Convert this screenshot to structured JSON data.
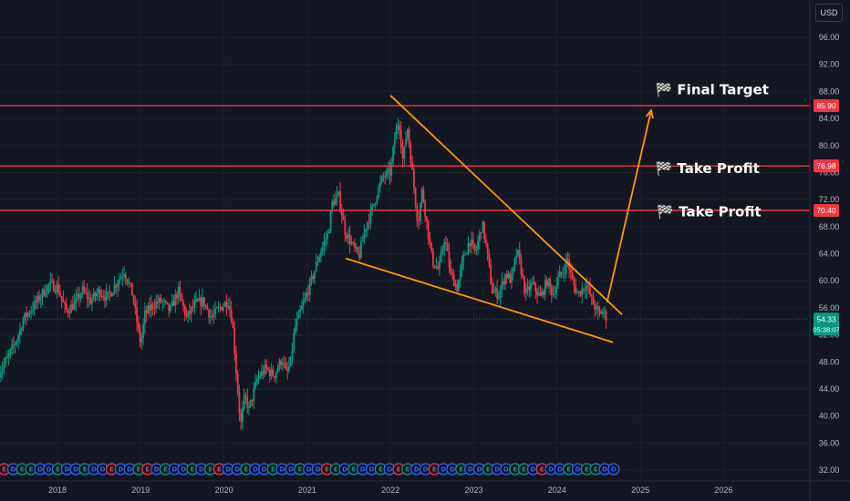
{
  "toolbar": {
    "currency": "USD"
  },
  "chart_data": {
    "type": "candlestick",
    "xlabels": [
      "2018",
      "2019",
      "2020",
      "2021",
      "2022",
      "2023",
      "2024",
      "2025",
      "2026"
    ],
    "yticks": [
      32,
      36,
      40,
      44,
      48,
      52,
      56,
      60,
      64,
      68,
      72,
      76,
      80,
      84,
      88,
      92,
      96
    ],
    "ylim": [
      31,
      98.5
    ],
    "xlim": [
      2017.3,
      2027.3
    ],
    "horizontal_levels": [
      {
        "value": 85.9,
        "label": "85.90",
        "color": "#f23645"
      },
      {
        "value": 76.98,
        "label": "76.98",
        "color": "#f23645"
      },
      {
        "value": 70.4,
        "label": "70.40",
        "color": "#f23645"
      }
    ],
    "current_price": {
      "value": 54.33,
      "label": "54.33",
      "countdown": "05:38:07",
      "color": "#089981"
    },
    "annotations": [
      {
        "text": "🏁 Final Target",
        "x": 2025.18,
        "y": 87.6
      },
      {
        "text": "🏁 Take Profit",
        "x": 2025.18,
        "y": 75.9
      },
      {
        "text": "🏁 Take Profit",
        "x": 2025.2,
        "y": 69.5
      }
    ],
    "trendlines": [
      {
        "from": [
          2022.0,
          87.4
        ],
        "to": [
          2024.78,
          55.0
        ],
        "color": "#ff9800"
      },
      {
        "from": [
          2021.46,
          63.3
        ],
        "to": [
          2024.67,
          50.9
        ],
        "color": "#ff9800"
      }
    ],
    "projection_arrow": {
      "from": [
        2024.6,
        56.8
      ],
      "to": [
        2025.13,
        85.2
      ],
      "color": "#ff9800"
    },
    "price_path": [
      [
        2017.3,
        46.5
      ],
      [
        2017.4,
        48.5
      ],
      [
        2017.5,
        51.0
      ],
      [
        2017.6,
        54.5
      ],
      [
        2017.7,
        56.0
      ],
      [
        2017.8,
        57.8
      ],
      [
        2017.9,
        59.5
      ],
      [
        2018.0,
        59.0
      ],
      [
        2018.1,
        55.5
      ],
      [
        2018.2,
        56.5
      ],
      [
        2018.3,
        58.5
      ],
      [
        2018.4,
        57.0
      ],
      [
        2018.5,
        58.5
      ],
      [
        2018.6,
        57.5
      ],
      [
        2018.7,
        59.5
      ],
      [
        2018.8,
        61.5
      ],
      [
        2018.9,
        58.0
      ],
      [
        2019.0,
        50.5
      ],
      [
        2019.05,
        55.0
      ],
      [
        2019.15,
        56.5
      ],
      [
        2019.25,
        57.0
      ],
      [
        2019.35,
        55.5
      ],
      [
        2019.45,
        58.5
      ],
      [
        2019.55,
        54.5
      ],
      [
        2019.65,
        56.5
      ],
      [
        2019.75,
        57.0
      ],
      [
        2019.85,
        54.5
      ],
      [
        2019.95,
        56.0
      ],
      [
        2020.05,
        57.0
      ],
      [
        2020.1,
        54.0
      ],
      [
        2020.15,
        46.0
      ],
      [
        2020.2,
        38.5
      ],
      [
        2020.25,
        43.0
      ],
      [
        2020.3,
        41.0
      ],
      [
        2020.4,
        45.5
      ],
      [
        2020.5,
        47.0
      ],
      [
        2020.6,
        46.0
      ],
      [
        2020.7,
        48.5
      ],
      [
        2020.75,
        46.0
      ],
      [
        2020.8,
        48.0
      ],
      [
        2020.85,
        53.0
      ],
      [
        2020.95,
        56.5
      ],
      [
        2021.05,
        60.0
      ],
      [
        2021.15,
        64.0
      ],
      [
        2021.25,
        67.0
      ],
      [
        2021.3,
        71.5
      ],
      [
        2021.38,
        72.5
      ],
      [
        2021.45,
        67.5
      ],
      [
        2021.55,
        65.0
      ],
      [
        2021.62,
        63.5
      ],
      [
        2021.7,
        68.0
      ],
      [
        2021.78,
        70.5
      ],
      [
        2021.85,
        73.5
      ],
      [
        2021.92,
        75.5
      ],
      [
        2022.0,
        76.0
      ],
      [
        2022.05,
        81.0
      ],
      [
        2022.1,
        84.0
      ],
      [
        2022.15,
        77.5
      ],
      [
        2022.2,
        83.0
      ],
      [
        2022.27,
        75.0
      ],
      [
        2022.33,
        68.5
      ],
      [
        2022.38,
        73.5
      ],
      [
        2022.43,
        69.0
      ],
      [
        2022.5,
        63.0
      ],
      [
        2022.58,
        61.5
      ],
      [
        2022.65,
        66.5
      ],
      [
        2022.72,
        61.0
      ],
      [
        2022.8,
        59.0
      ],
      [
        2022.88,
        63.5
      ],
      [
        2022.95,
        66.0
      ],
      [
        2023.02,
        64.0
      ],
      [
        2023.1,
        68.5
      ],
      [
        2023.15,
        65.0
      ],
      [
        2023.22,
        58.5
      ],
      [
        2023.3,
        58.0
      ],
      [
        2023.38,
        61.0
      ],
      [
        2023.45,
        60.0
      ],
      [
        2023.52,
        64.5
      ],
      [
        2023.57,
        61.5
      ],
      [
        2023.62,
        58.0
      ],
      [
        2023.7,
        59.5
      ],
      [
        2023.8,
        57.5
      ],
      [
        2023.88,
        60.0
      ],
      [
        2023.95,
        58.0
      ],
      [
        2024.02,
        60.5
      ],
      [
        2024.08,
        61.5
      ],
      [
        2024.12,
        63.5
      ],
      [
        2024.18,
        60.0
      ],
      [
        2024.25,
        58.0
      ],
      [
        2024.35,
        59.5
      ],
      [
        2024.42,
        57.0
      ],
      [
        2024.5,
        55.0
      ],
      [
        2024.55,
        55.5
      ],
      [
        2024.6,
        54.3
      ]
    ],
    "events": {
      "dividend_marks": 69,
      "labels": [
        "E",
        "D"
      ],
      "x_start": 2017.36,
      "x_end": 2024.68
    },
    "colors": {
      "up": "#089981",
      "down": "#f23645",
      "trend": "#ff9800",
      "background": "#131722",
      "grid": "#1e222d",
      "axis_text": "#b2b5be"
    }
  }
}
